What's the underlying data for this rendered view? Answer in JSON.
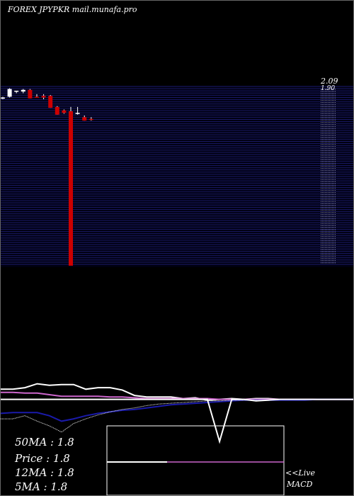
{
  "page": {
    "title": "FOREX  JPYPKR mail.munafa.pro"
  },
  "chart_data": [
    {
      "type": "candlestick",
      "title": "FOREX  JPYPKR mail.munafa.pro",
      "y_axis_labels": [
        "2.09",
        "1.90"
      ],
      "ylim": [
        0.0,
        2.1
      ],
      "grid": true,
      "colors": {
        "up": "#ffffff",
        "down": "#cc0000",
        "grid": "#1a1a66",
        "background": "#000000"
      },
      "candles": [
        {
          "o": 1.96,
          "h": 1.98,
          "l": 1.95,
          "c": 1.97
        },
        {
          "o": 1.98,
          "h": 2.08,
          "l": 1.97,
          "c": 2.07
        },
        {
          "o": 2.04,
          "h": 2.05,
          "l": 2.02,
          "c": 2.05
        },
        {
          "o": 2.04,
          "h": 2.07,
          "l": 2.02,
          "c": 2.06
        },
        {
          "o": 2.06,
          "h": 2.07,
          "l": 1.96,
          "c": 1.96
        },
        {
          "o": 1.98,
          "h": 2.01,
          "l": 1.97,
          "c": 1.97
        },
        {
          "o": 1.99,
          "h": 2.01,
          "l": 1.95,
          "c": 1.97
        },
        {
          "o": 1.99,
          "h": 2.0,
          "l": 1.85,
          "c": 1.85
        },
        {
          "o": 1.86,
          "h": 1.87,
          "l": 1.77,
          "c": 1.77
        },
        {
          "o": 1.82,
          "h": 1.83,
          "l": 1.78,
          "c": 1.79
        },
        {
          "o": 1.81,
          "h": 1.86,
          "l": 0.0,
          "c": 0.0
        },
        {
          "o": 1.79,
          "h": 1.86,
          "l": 1.77,
          "c": 1.79
        },
        {
          "o": 1.74,
          "h": 1.76,
          "l": 1.7,
          "c": 1.7
        },
        {
          "o": 1.72,
          "h": 1.74,
          "l": 1.7,
          "c": 1.71
        }
      ]
    },
    {
      "type": "line",
      "name": "moving averages",
      "x": [
        0,
        1,
        2,
        3,
        4,
        5,
        6,
        7,
        8,
        9,
        10,
        11,
        12,
        13,
        14,
        15,
        16,
        17,
        18,
        19,
        20,
        21,
        22,
        23,
        24,
        25,
        26,
        27,
        28,
        29
      ],
      "ylim": [
        0,
        10
      ],
      "series": [
        {
          "color": "#ffffff",
          "values": [
            4.7,
            4.7,
            4.9,
            5.4,
            5.2,
            5.3,
            5.3,
            4.7,
            4.9,
            4.9,
            4.6,
            3.9,
            3.7,
            3.7,
            3.7,
            3.5,
            3.6,
            3.3,
            3.4,
            3.5,
            3.4,
            3.5,
            3.5,
            3.4,
            3.4,
            3.4,
            3.4,
            3.4,
            3.4,
            3.4
          ]
        },
        {
          "color": "#cc66cc",
          "values": [
            4.3,
            4.3,
            4.2,
            4.2,
            4.0,
            3.8,
            3.8,
            3.8,
            3.8,
            3.7,
            3.7,
            3.6,
            3.5,
            3.5,
            3.5,
            3.5,
            3.5,
            3.5,
            3.4,
            3.4,
            3.4,
            3.4,
            3.4,
            3.4,
            3.4,
            3.4,
            3.4,
            3.4,
            3.4,
            3.4
          ]
        },
        {
          "color": "#1a1aaa",
          "values": [
            1.6,
            1.7,
            1.7,
            1.7,
            1.3,
            0.6,
            0.9,
            1.3,
            1.6,
            1.8,
            2.0,
            2.1,
            2.3,
            2.5,
            2.7,
            2.8,
            2.9,
            3.0,
            3.1,
            3.2,
            3.3,
            3.3,
            3.3,
            3.3,
            3.3,
            3.3,
            3.4,
            3.4,
            3.4,
            3.4
          ]
        },
        {
          "color": "#ffffff",
          "dashed": true,
          "values": [
            0.9,
            0.9,
            1.3,
            0.6,
            0.0,
            -0.8,
            0.3,
            0.9,
            1.4,
            1.8,
            2.1,
            2.3,
            2.6,
            2.8,
            2.9,
            3.0,
            3.1,
            3.2,
            3.2,
            3.3,
            3.3,
            3.3,
            3.3,
            3.4,
            3.4,
            3.4,
            3.4,
            3.4,
            3.4,
            3.4
          ]
        },
        {
          "color": "#ffffff",
          "values": [
            3.4,
            3.4,
            3.4,
            3.4,
            3.4,
            3.4,
            3.4,
            3.4,
            3.4,
            3.4,
            3.4,
            3.4,
            3.4,
            3.4,
            3.4,
            3.4,
            3.4,
            3.4,
            -2.0,
            3.4,
            3.4,
            3.2,
            3.3,
            3.4,
            3.4,
            3.4,
            3.4,
            3.4,
            3.4,
            3.4
          ]
        }
      ]
    },
    {
      "type": "line",
      "name": "MACD",
      "series": [
        {
          "color": "#ffffff",
          "values": [
            0,
            0
          ]
        },
        {
          "color": "#cc66cc",
          "values": [
            0,
            0
          ]
        }
      ]
    }
  ],
  "stats": [
    {
      "label": "50MA",
      "value": "1.8"
    },
    {
      "label": "Price  ",
      "value": "1.8"
    },
    {
      "label": "12MA",
      "value": "1.8"
    },
    {
      "label": "5MA",
      "value": "1.8"
    }
  ],
  "macd_label": {
    "line1": "<<Live",
    "line2": "MACD"
  }
}
